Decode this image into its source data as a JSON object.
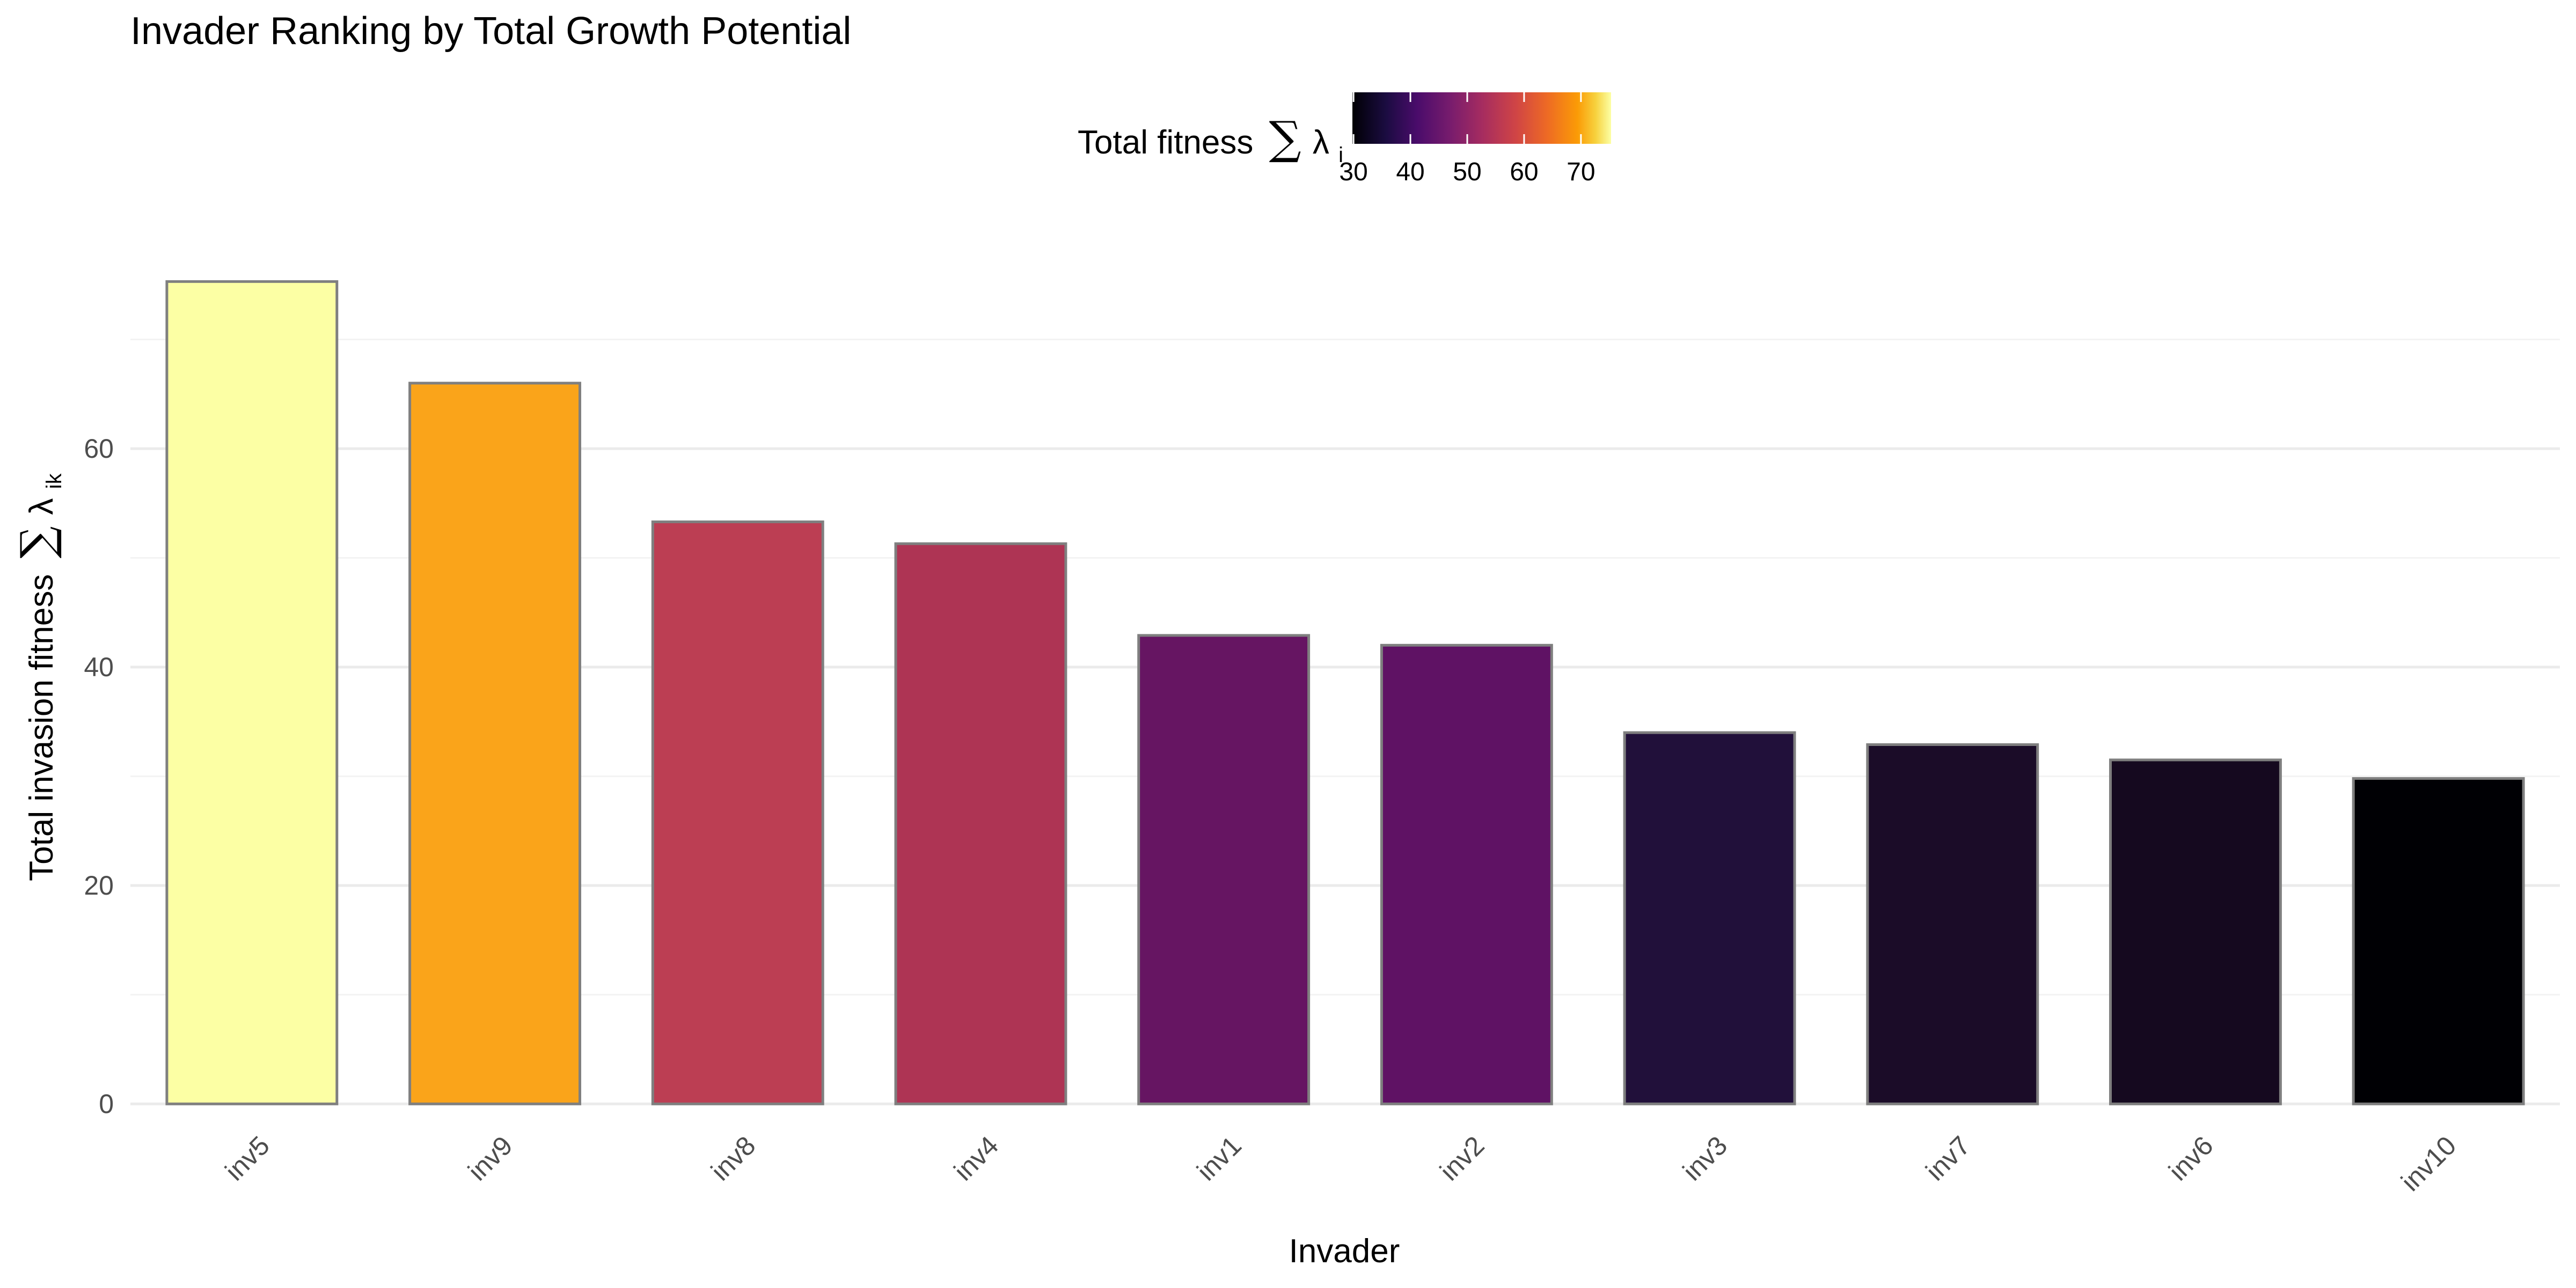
{
  "chart_data": {
    "type": "bar",
    "title": "Invader Ranking by Total Growth Potential",
    "xlabel": "Invader",
    "ylabel": "Total invasion fitness",
    "ylabel_symbol": "∑",
    "ylabel_var": "λ",
    "ylabel_sub": "ik",
    "categories": [
      "inv5",
      "inv9",
      "inv8",
      "inv4",
      "inv1",
      "inv2",
      "inv3",
      "inv7",
      "inv6",
      "inv10"
    ],
    "values": [
      75.3,
      66.0,
      53.3,
      51.3,
      42.9,
      42.0,
      34.0,
      32.9,
      31.5,
      29.8
    ],
    "ylim": [
      0,
      80
    ],
    "y_ticks": [
      "0",
      "20",
      "40",
      "60"
    ],
    "grid": true,
    "legend": {
      "position": "top",
      "title": "Total fitness",
      "title_symbol": "∑",
      "title_var": "λ",
      "title_sub": "i",
      "colormap": "inferno",
      "range": [
        29.8,
        75.3
      ],
      "ticks": [
        "30",
        "40",
        "50",
        "60",
        "70"
      ]
    },
    "bar_colors": [
      "#FCFFA4",
      "#FAA41A",
      "#BC3E53",
      "#AE3454",
      "#661562",
      "#5F1264",
      "#21103A",
      "#1B0C28",
      "#15091F",
      "#000004"
    ],
    "bar_outline_color": "#7F7F7F"
  }
}
